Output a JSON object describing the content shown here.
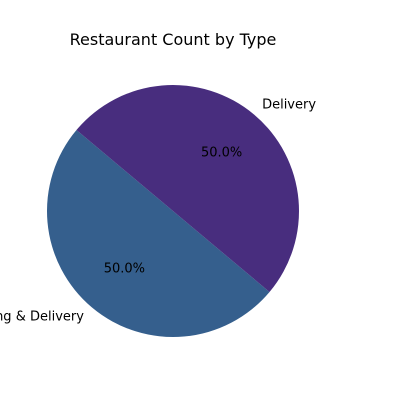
{
  "chart_data": {
    "type": "pie",
    "title": "Restaurant Count by Type",
    "categories": [
      "Dining & Delivery",
      "Delivery"
    ],
    "values": [
      50.0,
      50.0
    ],
    "percent_labels": [
      "50.0%",
      "50.0%"
    ],
    "colors": [
      "#355f8d",
      "#482d7e"
    ],
    "start_angle_deg": 140,
    "legend": "none"
  }
}
